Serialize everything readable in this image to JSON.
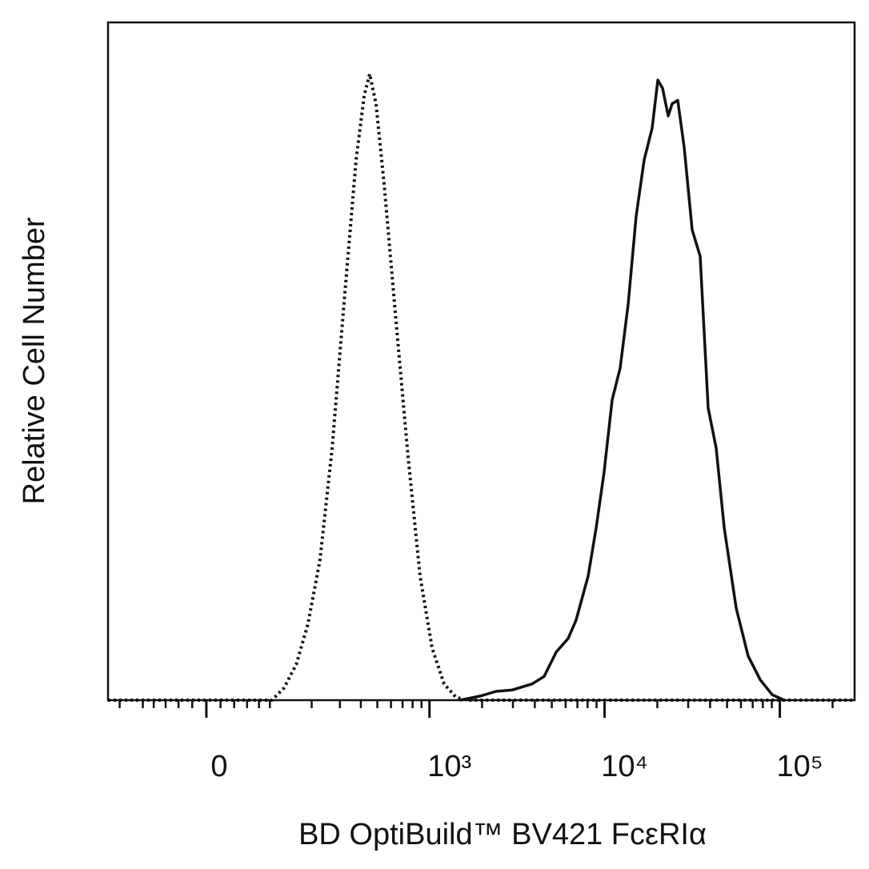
{
  "chart_data": {
    "type": "line",
    "x_label": "BD OptiBuild™ BV421 FcεRIα",
    "y_label": "Relative Cell Number",
    "xscale": "biexponential",
    "xlim": [
      -180,
      267000
    ],
    "ylim": [
      0,
      100
    ],
    "xticks": [
      0,
      {
        "value": 1000,
        "label": "10³"
      },
      {
        "value": 10000,
        "label": "10⁴"
      },
      {
        "value": 100000,
        "label": "10⁵"
      }
    ],
    "xminorticks": [
      -150,
      -100,
      -80,
      -60,
      -40,
      -20,
      20,
      40,
      60,
      80,
      100,
      200,
      300,
      400,
      500,
      600,
      700,
      800,
      900,
      2000,
      3000,
      4000,
      5000,
      6000,
      7000,
      8000,
      9000,
      20000,
      30000,
      40000,
      50000,
      60000,
      70000,
      80000,
      90000,
      200000
    ],
    "series": [
      {
        "color": "#111111",
        "style": "dotted",
        "x": [
          -180,
          104,
          129,
          158,
          189,
          226,
          269,
          317,
          375,
          418,
          451,
          491,
          547,
          641,
          753,
          883,
          1035,
          1213,
          1420,
          1664,
          267000
        ],
        "values": [
          0,
          0,
          1.8,
          5.3,
          11.2,
          20.7,
          37.2,
          58.4,
          79.7,
          89.1,
          92.4,
          88.0,
          76.2,
          56.1,
          36.0,
          18.3,
          7.7,
          2.4,
          0.4,
          0,
          0
        ]
      },
      {
        "color": "#111111",
        "style": "solid",
        "x": [
          1497,
          1949,
          2404,
          2968,
          3861,
          4520,
          5297,
          6195,
          6880,
          8057,
          8956,
          9940,
          11053,
          12273,
          13632,
          15151,
          16820,
          18693,
          20127,
          21432,
          23080,
          24310,
          26172,
          28473,
          31619,
          35117,
          39002,
          43314,
          48161,
          56368,
          66000,
          77310,
          90470,
          105930
        ],
        "values": [
          0,
          0.6,
          1.3,
          1.5,
          2.4,
          3.5,
          7.1,
          9.1,
          11.8,
          18.3,
          25.4,
          33.6,
          44.3,
          49.0,
          58.4,
          71.4,
          79.7,
          84.4,
          91.5,
          90.3,
          86.2,
          88.0,
          88.5,
          81.5,
          69.4,
          65.5,
          43.1,
          37.2,
          25.4,
          13.6,
          6.5,
          3.0,
          0.8,
          0
        ]
      }
    ]
  }
}
